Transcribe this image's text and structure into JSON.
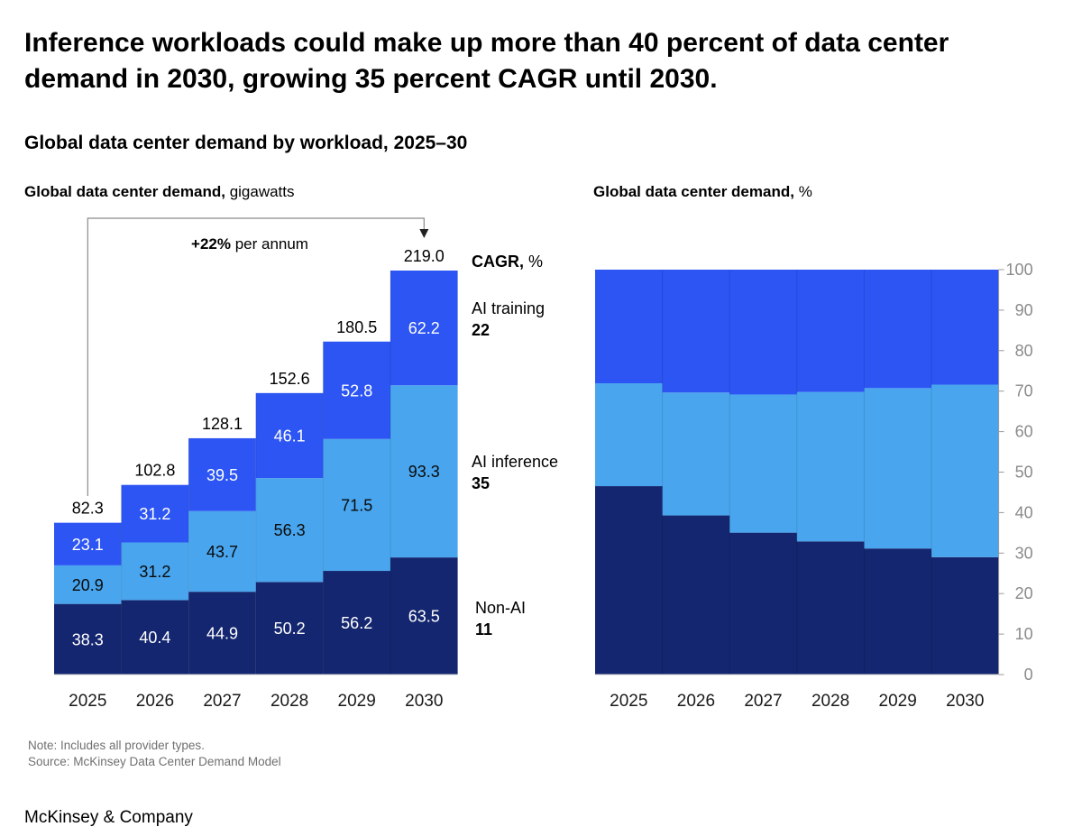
{
  "headline": "Inference workloads could make up more than 40 percent of data center demand in 2030, growing 35 percent CAGR until 2030.",
  "subtitle": "Global data center demand by workload, 2025–30",
  "note": "Note: Includes all provider types.",
  "source": "Source: McKinsey Data Center Demand Model",
  "brand": "McKinsey & Company",
  "colors": {
    "non_ai": "#14266f",
    "ai_inference": "#49a6ee",
    "ai_training": "#2c55f3",
    "axis": "#9a9a9a"
  },
  "chart_data": [
    {
      "type": "bar",
      "stacked": true,
      "title_bold": "Global data center demand,",
      "title_unit": "gigawatts",
      "categories": [
        "2025",
        "2026",
        "2027",
        "2028",
        "2029",
        "2030"
      ],
      "series": [
        {
          "name": "Non-AI",
          "cagr": "11",
          "values": [
            38.3,
            40.4,
            44.9,
            50.2,
            56.2,
            63.5
          ]
        },
        {
          "name": "AI inference",
          "cagr": "35",
          "values": [
            20.9,
            31.2,
            43.7,
            56.3,
            71.5,
            93.3
          ]
        },
        {
          "name": "AI training",
          "cagr": "22",
          "values": [
            23.1,
            31.2,
            39.5,
            46.1,
            52.8,
            62.2
          ]
        }
      ],
      "totals": [
        "82.3",
        "102.8",
        "128.1",
        "152.6",
        "180.5",
        "219.0"
      ],
      "ylim": [
        0,
        219
      ],
      "annotation_bold": "+22%",
      "annotation_text": "per annum",
      "legend_header_bold": "CAGR,",
      "legend_header_unit": "%",
      "legend_placement": "right"
    },
    {
      "type": "bar",
      "stacked": true,
      "normalized": true,
      "title_bold": "Global data center demand,",
      "title_unit": "%",
      "categories": [
        "2025",
        "2026",
        "2027",
        "2028",
        "2029",
        "2030"
      ],
      "ylim": [
        0,
        100
      ],
      "yticks": [
        "0",
        "10",
        "20",
        "30",
        "40",
        "50",
        "60",
        "70",
        "80",
        "90",
        "100"
      ],
      "y_axis_side": "right",
      "grid": false
    }
  ]
}
